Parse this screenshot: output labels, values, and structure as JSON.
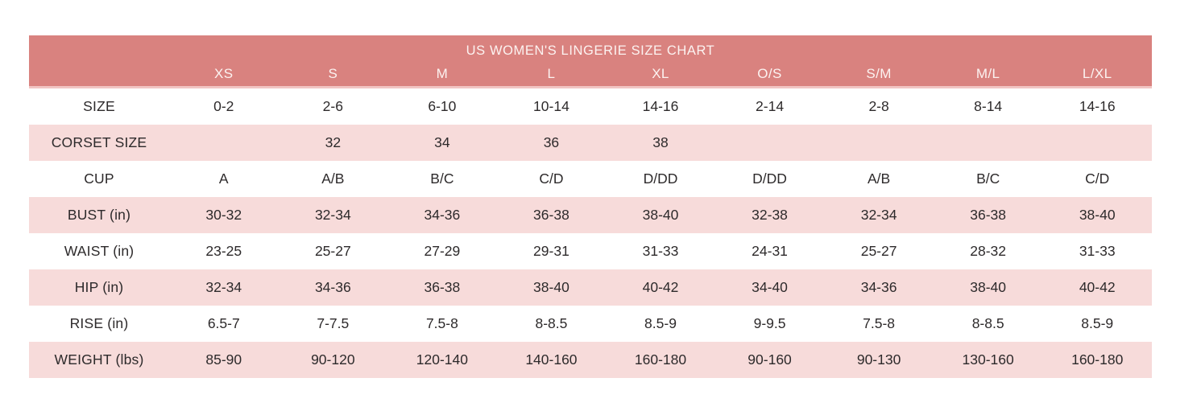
{
  "chart_data": {
    "type": "table",
    "title": "US WOMEN'S LINGERIE SIZE CHART",
    "columns": [
      "XS",
      "S",
      "M",
      "L",
      "XL",
      "O/S",
      "S/M",
      "M/L",
      "L/XL"
    ],
    "rows": [
      {
        "label": "SIZE",
        "values": [
          "0-2",
          "2-6",
          "6-10",
          "10-14",
          "14-16",
          "2-14",
          "2-8",
          "8-14",
          "14-16"
        ]
      },
      {
        "label": "CORSET SIZE",
        "values": [
          "",
          "32",
          "34",
          "36",
          "38",
          "",
          "",
          "",
          ""
        ]
      },
      {
        "label": "CUP",
        "values": [
          "A",
          "A/B",
          "B/C",
          "C/D",
          "D/DD",
          "D/DD",
          "A/B",
          "B/C",
          "C/D"
        ]
      },
      {
        "label": "BUST (in)",
        "values": [
          "30-32",
          "32-34",
          "34-36",
          "36-38",
          "38-40",
          "32-38",
          "32-34",
          "36-38",
          "38-40"
        ]
      },
      {
        "label": "WAIST (in)",
        "values": [
          "23-25",
          "25-27",
          "27-29",
          "29-31",
          "31-33",
          "24-31",
          "25-27",
          "28-32",
          "31-33"
        ]
      },
      {
        "label": "HIP (in)",
        "values": [
          "32-34",
          "34-36",
          "36-38",
          "38-40",
          "40-42",
          "34-40",
          "34-36",
          "38-40",
          "40-42"
        ]
      },
      {
        "label": "RISE (in)",
        "values": [
          "6.5-7",
          "7-7.5",
          "7.5-8",
          "8-8.5",
          "8.5-9",
          "9-9.5",
          "7.5-8",
          "8-8.5",
          "8.5-9"
        ]
      },
      {
        "label": "WEIGHT (lbs)",
        "values": [
          "85-90",
          "90-120",
          "120-140",
          "140-160",
          "160-180",
          "90-160",
          "90-130",
          "130-160",
          "160-180"
        ]
      }
    ],
    "layout": {
      "legend": false,
      "grid": false,
      "row_striping": "even-white-odd-pink"
    },
    "colors": {
      "header_bg": "#D9827F",
      "header_text": "#FCF3F1",
      "row_bg": "#FFFFFF",
      "row_alt_bg": "#F7DBDA",
      "body_text": "#2D2A2B"
    }
  }
}
